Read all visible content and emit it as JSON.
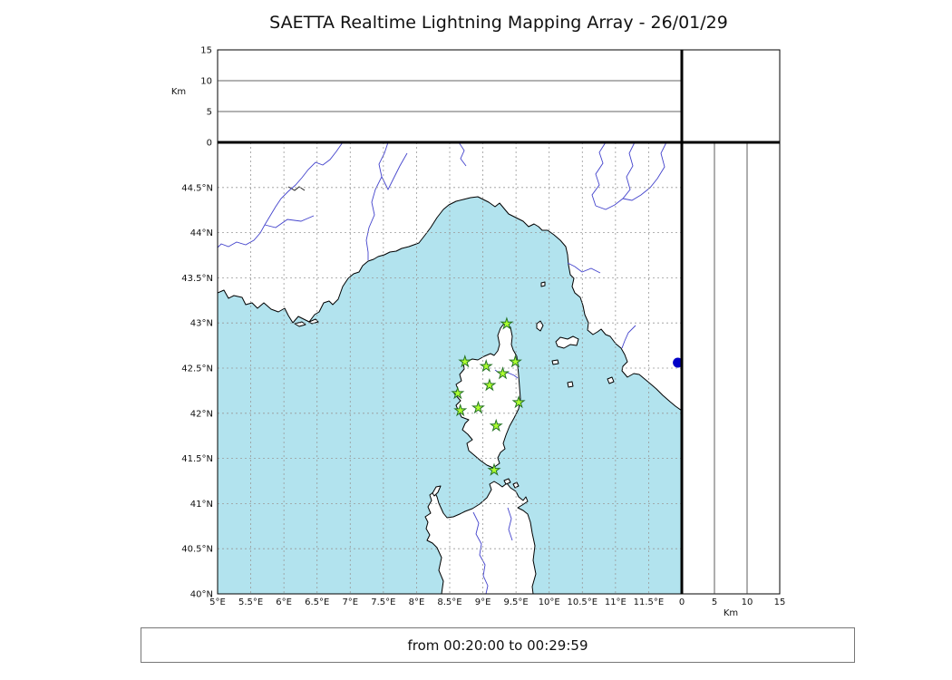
{
  "title": "SAETTA Realtime Lightning Mapping Array - 26/01/29",
  "status_bar": {
    "text": "from 00:20:00 to 00:29:59"
  },
  "top_panel": {
    "axis_label": "Km",
    "tick_labels": [
      "0",
      "5",
      "10",
      "15"
    ],
    "range_km": [
      0,
      15
    ]
  },
  "right_panel": {
    "axis_label": "Km",
    "tick_labels": [
      "0",
      "5",
      "10",
      "15"
    ],
    "range_km": [
      0,
      15
    ]
  },
  "map": {
    "lon_min": 5,
    "lon_max": 12,
    "lat_min": 40,
    "lat_max": 45,
    "grid_step_deg": 0.5,
    "lon_tick_labels": [
      "5°E",
      "5.5°E",
      "6°E",
      "6.5°E",
      "7°E",
      "7.5°E",
      "8°E",
      "8.5°E",
      "9°E",
      "9.5°E",
      "10°E",
      "10.5°E",
      "11°E",
      "11.5°E"
    ],
    "lat_tick_labels": [
      "40°N",
      "40.5°N",
      "41°N",
      "41.5°N",
      "42°N",
      "42.5°N",
      "43°N",
      "43.5°N",
      "44°N",
      "44.5°N"
    ],
    "colors": {
      "sea": "#b2e3ee",
      "land": "#ffffff",
      "coastline": "#000000",
      "grid": "#999999",
      "river": "#4343cc",
      "station_fill": "#adff2f",
      "station_edge": "#267326",
      "event_marker": "#0000c8"
    },
    "stations": [
      {
        "lon": 9.36,
        "lat": 42.99
      },
      {
        "lon": 8.73,
        "lat": 42.57
      },
      {
        "lon": 9.05,
        "lat": 42.52
      },
      {
        "lon": 9.49,
        "lat": 42.57
      },
      {
        "lon": 9.3,
        "lat": 42.44
      },
      {
        "lon": 9.1,
        "lat": 42.31
      },
      {
        "lon": 8.62,
        "lat": 42.22
      },
      {
        "lon": 9.54,
        "lat": 42.12
      },
      {
        "lon": 8.66,
        "lat": 42.03
      },
      {
        "lon": 8.93,
        "lat": 42.06
      },
      {
        "lon": 9.2,
        "lat": 41.86
      },
      {
        "lon": 9.17,
        "lat": 41.37
      }
    ],
    "event_marker": {
      "lon": 11.94,
      "lat": 42.56
    }
  }
}
